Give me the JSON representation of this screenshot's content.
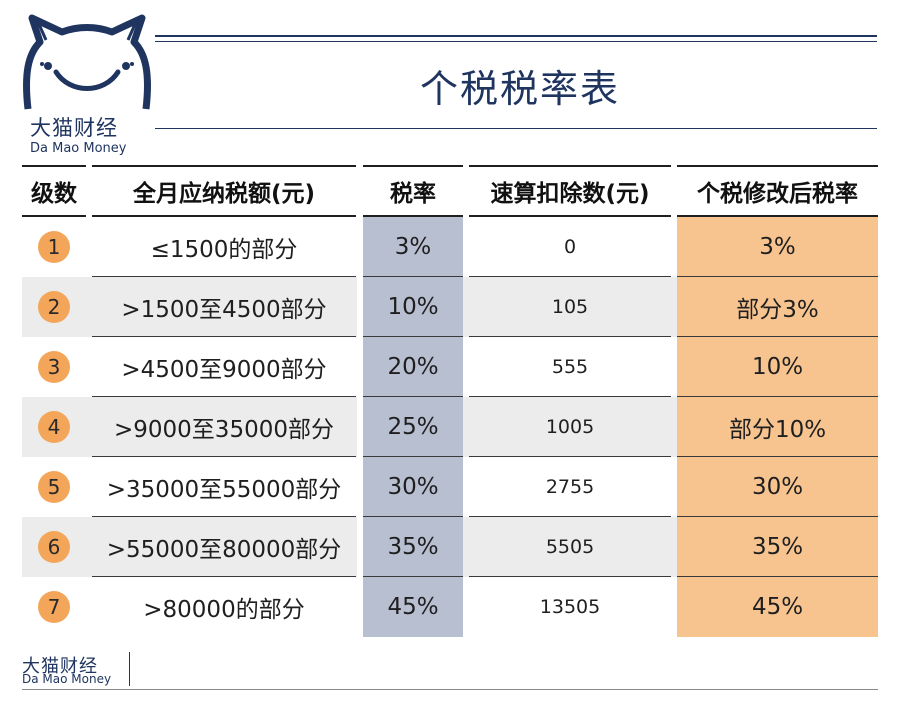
{
  "brand": {
    "name_cn": "大猫财经",
    "name_en": "Da Mao Money",
    "color": "#1f3560"
  },
  "title": "个税税率表",
  "table": {
    "headers": [
      "级数",
      "全月应纳税额(元)",
      "税率",
      "速算扣除数(元)",
      "个税修改后税率"
    ],
    "rows": [
      {
        "level": "1",
        "range": "≤1500的部分",
        "rate": "3%",
        "deduction": "0",
        "new_rate": "3%"
      },
      {
        "level": "2",
        "range": ">1500至4500部分",
        "rate": "10%",
        "deduction": "105",
        "new_rate": "部分3%"
      },
      {
        "level": "3",
        "range": ">4500至9000部分",
        "rate": "20%",
        "deduction": "555",
        "new_rate": "10%"
      },
      {
        "level": "4",
        "range": ">9000至35000部分",
        "rate": "25%",
        "deduction": "1005",
        "new_rate": "部分10%"
      },
      {
        "level": "5",
        "range": ">35000至55000部分",
        "rate": "30%",
        "deduction": "2755",
        "new_rate": "30%"
      },
      {
        "level": "6",
        "range": ">55000至80000部分",
        "rate": "35%",
        "deduction": "5505",
        "new_rate": "35%"
      },
      {
        "level": "7",
        "range": ">80000的部分",
        "rate": "45%",
        "deduction": "13505",
        "new_rate": "45%"
      }
    ]
  },
  "colors": {
    "level_badge": "#f3a55a",
    "rate_column": "#b7bfd1",
    "new_rate_column": "#f7c48f",
    "stripe": "#ececec"
  },
  "footer": {
    "name_cn": "大猫财经",
    "name_en": "Da Mao Money"
  }
}
